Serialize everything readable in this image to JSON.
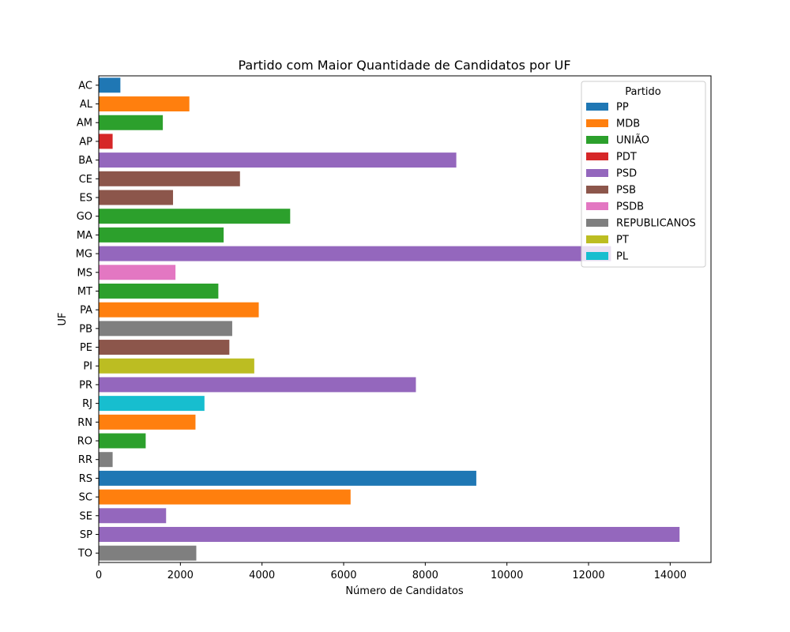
{
  "chart_data": {
    "type": "bar",
    "orientation": "horizontal",
    "title": "Partido com Maior Quantidade de Candidatos por UF",
    "xlabel": "Número de Candidatos",
    "ylabel": "UF",
    "xlim": [
      0,
      15000
    ],
    "xticks": [
      0,
      2000,
      4000,
      6000,
      8000,
      10000,
      12000,
      14000
    ],
    "grid": false,
    "legend": {
      "title": "Partido",
      "placement": "top-right",
      "entries": [
        {
          "name": "PP",
          "color": "#1f77b4"
        },
        {
          "name": "MDB",
          "color": "#ff7f0e"
        },
        {
          "name": "UNIÃO",
          "color": "#2ca02c"
        },
        {
          "name": "PDT",
          "color": "#d62728"
        },
        {
          "name": "PSD",
          "color": "#9467bd"
        },
        {
          "name": "PSB",
          "color": "#8c564b"
        },
        {
          "name": "PSDB",
          "color": "#e377c2"
        },
        {
          "name": "REPUBLICANOS",
          "color": "#7f7f7f"
        },
        {
          "name": "PT",
          "color": "#bcbd22"
        },
        {
          "name": "PL",
          "color": "#17becf"
        }
      ]
    },
    "bars": [
      {
        "uf": "AC",
        "party": "PP",
        "value": 530
      },
      {
        "uf": "AL",
        "party": "MDB",
        "value": 2220
      },
      {
        "uf": "AM",
        "party": "UNIÃO",
        "value": 1570
      },
      {
        "uf": "AP",
        "party": "PDT",
        "value": 340
      },
      {
        "uf": "BA",
        "party": "PSD",
        "value": 8760
      },
      {
        "uf": "CE",
        "party": "PSB",
        "value": 3460
      },
      {
        "uf": "ES",
        "party": "PSB",
        "value": 1820
      },
      {
        "uf": "GO",
        "party": "UNIÃO",
        "value": 4690
      },
      {
        "uf": "MA",
        "party": "UNIÃO",
        "value": 3060
      },
      {
        "uf": "MG",
        "party": "PSD",
        "value": 12550
      },
      {
        "uf": "MS",
        "party": "PSDB",
        "value": 1880
      },
      {
        "uf": "MT",
        "party": "UNIÃO",
        "value": 2930
      },
      {
        "uf": "PA",
        "party": "MDB",
        "value": 3920
      },
      {
        "uf": "PB",
        "party": "REPUBLICANOS",
        "value": 3270
      },
      {
        "uf": "PE",
        "party": "PSB",
        "value": 3200
      },
      {
        "uf": "PI",
        "party": "PT",
        "value": 3810
      },
      {
        "uf": "PR",
        "party": "PSD",
        "value": 7770
      },
      {
        "uf": "RJ",
        "party": "PL",
        "value": 2590
      },
      {
        "uf": "RN",
        "party": "MDB",
        "value": 2370
      },
      {
        "uf": "RO",
        "party": "UNIÃO",
        "value": 1150
      },
      {
        "uf": "RR",
        "party": "REPUBLICANOS",
        "value": 340
      },
      {
        "uf": "RS",
        "party": "PP",
        "value": 9250
      },
      {
        "uf": "SC",
        "party": "MDB",
        "value": 6170
      },
      {
        "uf": "SE",
        "party": "PSD",
        "value": 1650
      },
      {
        "uf": "SP",
        "party": "PSD",
        "value": 14230
      },
      {
        "uf": "TO",
        "party": "REPUBLICANOS",
        "value": 2390
      }
    ]
  }
}
